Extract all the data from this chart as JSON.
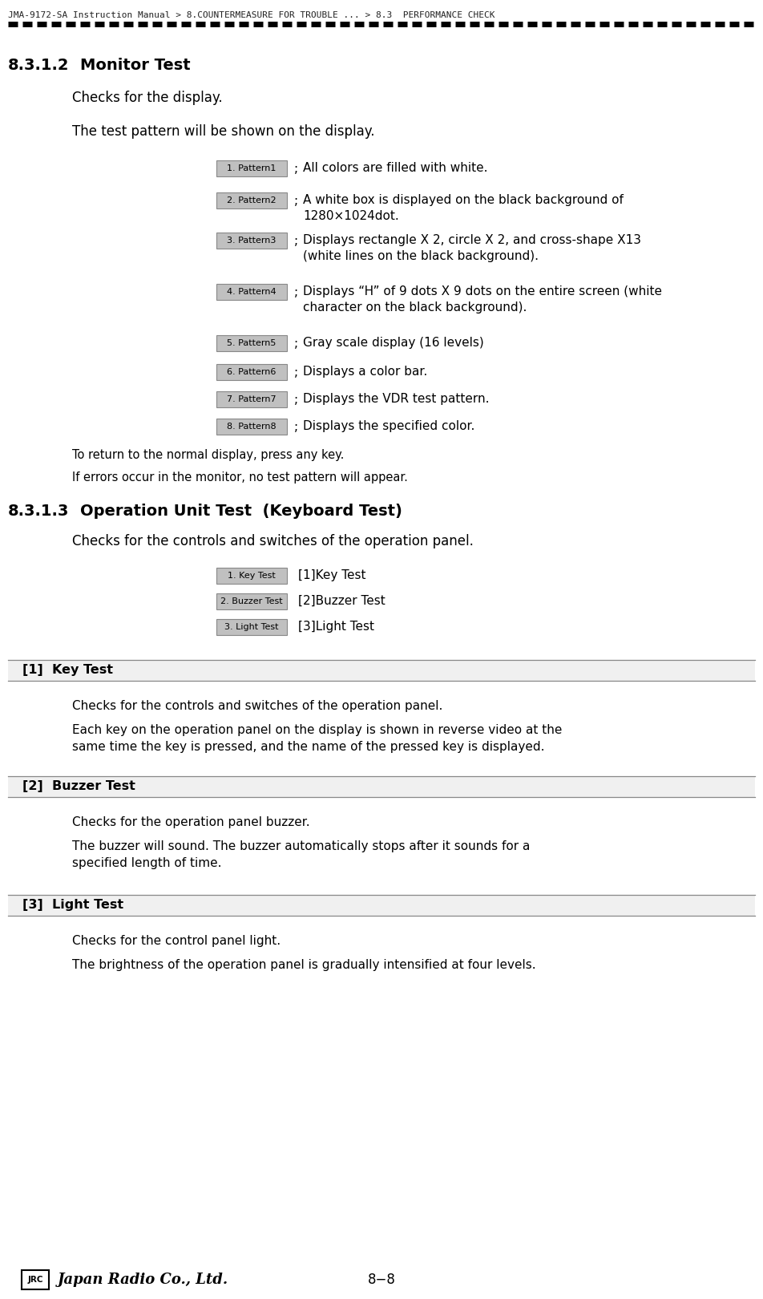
{
  "title_breadcrumb": "JMA-9172-SA Instruction Manual > 8.COUNTERMEASURE FOR TROUBLE ... > 8.3  PERFORMANCE CHECK",
  "section_312": "8.3.1.2",
  "section_312_title": "Monitor Test",
  "section_312_sub1": "Checks for the display.",
  "section_312_sub2": "The test pattern will be shown on the display.",
  "patterns": [
    {
      "label": "1. Pattern1",
      "desc": "All colors are filled with white.",
      "lines": 1
    },
    {
      "label": "2. Pattern2",
      "desc": "A white box is displayed on the black background of\n1280×1024dot.",
      "lines": 2
    },
    {
      "label": "3. Pattern3",
      "desc": "Displays rectangle X 2, circle X 2, and cross-shape X13\n(white lines on the black background).",
      "lines": 2
    },
    {
      "label": "4. Pattern4",
      "desc": "Displays “H” of 9 dots X 9 dots on the entire screen (white\ncharacter on the black background).",
      "lines": 2
    },
    {
      "label": "5. Pattern5",
      "desc": "Gray scale display (16 levels)",
      "lines": 1
    },
    {
      "label": "6. Pattern6",
      "desc": "Displays a color bar.",
      "lines": 1
    },
    {
      "label": "7. Pattern7",
      "desc": "Displays the VDR test pattern.",
      "lines": 1
    },
    {
      "label": "8. Pattern8",
      "desc": "Displays the specified color.",
      "lines": 1
    }
  ],
  "section_312_note1": "To return to the normal display, press any key.",
  "section_312_note2": "If errors occur in the monitor, no test pattern will appear.",
  "section_313": "8.3.1.3",
  "section_313_title": "Operation Unit Test  (Keyboard Test)",
  "section_313_sub": "Checks for the controls and switches of the operation panel.",
  "kbd_items": [
    {
      "label": "1. Key Test",
      "desc": "[1]Key Test"
    },
    {
      "label": "2. Buzzer Test",
      "desc": "[2]Buzzer Test"
    },
    {
      "label": "3. Light Test",
      "desc": "[3]Light Test"
    }
  ],
  "sub1_title": "[1]  Key Test",
  "sub1_p1": "Checks for the controls and switches of the operation panel.",
  "sub1_p2": "Each key on the operation panel on the display is shown in reverse video at the\nsame time the key is pressed, and the name of the pressed key is displayed.",
  "sub2_title": "[2]  Buzzer Test",
  "sub2_p1": "Checks for the operation panel buzzer.",
  "sub2_p2": "The buzzer will sound. The buzzer automatically stops after it sounds for a\nspecified length of time.",
  "sub3_title": "[3]  Light Test",
  "sub3_p1": "Checks for the control panel light.",
  "sub3_p2": "The brightness of the operation panel is gradually intensified at four levels.",
  "footer_page": "8−8",
  "bg_color": "#ffffff",
  "text_color": "#000000",
  "breadcrumb_color": "#222222",
  "button_bg": "#c0c0c0",
  "button_border": "#888888",
  "dashed_line_color": "#000000",
  "line_color": "#888888"
}
